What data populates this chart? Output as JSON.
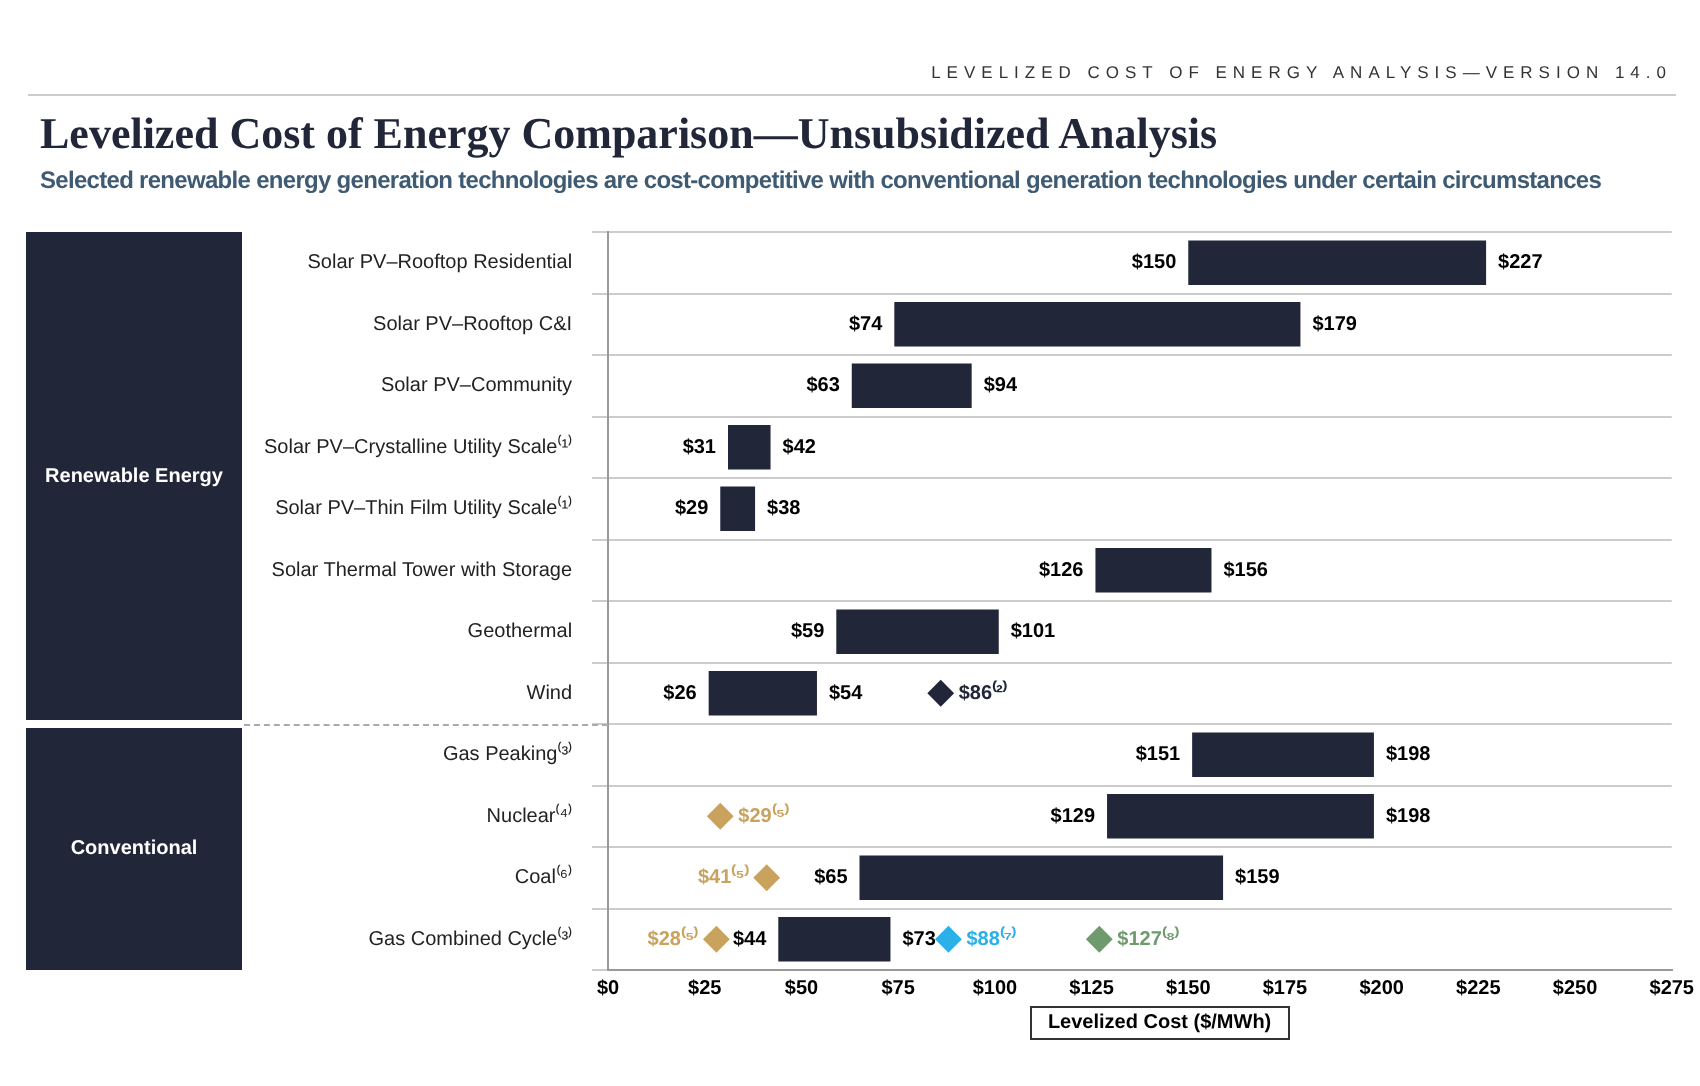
{
  "chart_data": {
    "type": "bar",
    "orientation": "horizontal",
    "title": "Levelized Cost of Energy Comparison—Unsubsidized Analysis",
    "subtitle": "Selected renewable energy generation technologies are cost-competitive with conventional generation technologies under certain circumstances",
    "xlabel": "Levelized Cost ($/MWh)",
    "annotations": [
      "LEVELIZED COST OF ENERGY ANALYSIS—VERSION 14.0",
      "Renewable Energy",
      "Conventional",
      {
        "text": "$150",
        "x": 150,
        "y": "Solar PV–Rooftop Residential"
      },
      {
        "text": "$74",
        "x": 74,
        "y": "Solar PV–Rooftop C&I"
      },
      {
        "text": "$63",
        "x": 63,
        "y": "Solar PV–Community"
      },
      {
        "text": "$31",
        "x": 31,
        "y": "Solar PV–Crystalline Utility Scale⁽¹⁾"
      },
      {
        "text": "$29",
        "x": 29,
        "y": "Solar PV–Thin Film Utility Scale⁽¹⁾"
      },
      {
        "text": "$126",
        "x": 126,
        "y": "Solar Thermal Tower with Storage"
      },
      {
        "text": "$59",
        "x": 59,
        "y": "Geothermal"
      },
      {
        "text": "$26",
        "x": 26,
        "y": "Wind"
      },
      {
        "text": "$151",
        "x": 151,
        "y": "Gas Peaking⁽³⁾"
      },
      {
        "text": "$129",
        "x": 129,
        "y": "Nuclear⁽⁴⁾"
      },
      {
        "text": "$65",
        "x": 65,
        "y": "Coal⁽⁶⁾"
      },
      {
        "text": "$44",
        "x": 44,
        "y": "Gas Combined Cycle⁽³⁾"
      }
    ],
    "categories": [
      "Solar PV–Rooftop Residential",
      "Solar PV–Rooftop C&I",
      "Solar PV–Community",
      "Solar PV–Crystalline Utility Scale⁽¹⁾",
      "Solar PV–Thin Film Utility Scale⁽¹⁾",
      "Solar Thermal Tower with Storage",
      "Geothermal",
      "Wind",
      "Gas Peaking⁽³⁾",
      "Nuclear⁽⁴⁾",
      "Coal⁽⁶⁾",
      "Gas Combined Cycle⁽³⁾"
    ],
    "series": [
      {
        "color": "#222639",
        "base": [
          150,
          74,
          63,
          31,
          29,
          126,
          59,
          26,
          151,
          129,
          65,
          44
        ],
        "values": [
          77,
          105,
          31,
          11,
          9,
          30,
          42,
          28,
          47,
          69,
          94,
          29
        ],
        "value_labels": [
          "$227",
          "$179",
          "$94",
          "$42",
          "$38",
          "$156",
          "$101",
          "$54",
          "$198",
          "$198",
          "$159",
          "$73"
        ]
      },
      {
        "type": "scatter",
        "color": "#222639",
        "x": [
          "Wind"
        ],
        "values": [
          86
        ],
        "value_labels": [
          "$86⁽²⁾"
        ]
      },
      {
        "type": "scatter",
        "color": "#c9a25e",
        "x": [
          "Nuclear⁽⁴⁾",
          "Coal⁽⁶⁾",
          "Gas Combined Cycle⁽³⁾"
        ],
        "values": [
          29,
          41,
          28
        ],
        "value_labels": [
          "$29⁽⁵⁾",
          "$41⁽⁵⁾",
          "$28⁽⁵⁾"
        ]
      },
      {
        "type": "scatter",
        "color": "#2bb0e8",
        "x": [
          "Gas Combined Cycle⁽³⁾"
        ],
        "values": [
          88
        ],
        "value_labels": [
          "$88⁽⁷⁾"
        ]
      },
      {
        "type": "scatter",
        "color": "#6f9a6e",
        "x": [
          "Gas Combined Cycle⁽³⁾"
        ],
        "values": [
          127
        ],
        "value_labels": [
          "$127⁽⁸⁾"
        ]
      }
    ],
    "xlim": [
      0,
      275
    ],
    "xticks": [
      {
        "value": 0,
        "label": "$0"
      },
      {
        "value": 25,
        "label": "$25"
      },
      {
        "value": 50,
        "label": "$50"
      },
      {
        "value": 75,
        "label": "$75"
      },
      {
        "value": 100,
        "label": "$100"
      },
      {
        "value": 125,
        "label": "$125"
      },
      {
        "value": 150,
        "label": "$150"
      },
      {
        "value": 175,
        "label": "$175"
      },
      {
        "value": 200,
        "label": "$200"
      },
      {
        "value": 225,
        "label": "$225"
      },
      {
        "value": 250,
        "label": "$250"
      },
      {
        "value": 275,
        "label": "$275"
      }
    ],
    "grid": "y",
    "legend": false,
    "marker": "diamond"
  }
}
